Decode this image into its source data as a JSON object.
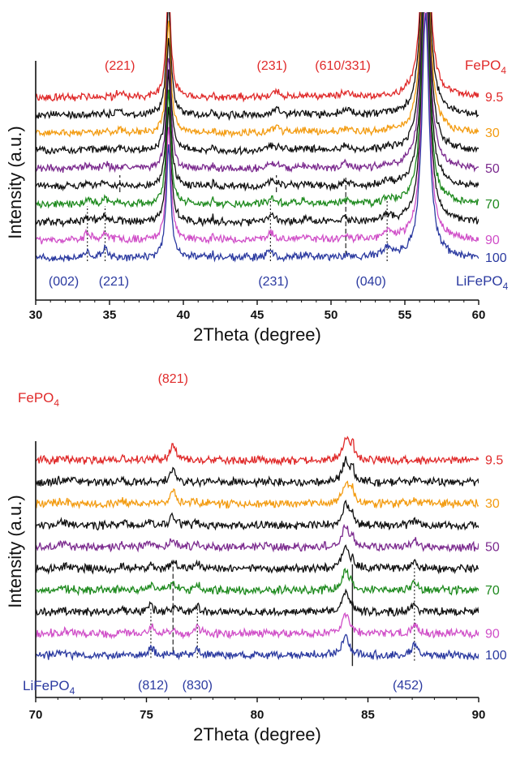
{
  "figure": {
    "background": "#ffffff"
  },
  "colors": {
    "red": "#e02a2a",
    "black": "#111111",
    "orange": "#f39c12",
    "purple": "#7b2a8e",
    "green": "#1e8a1e",
    "magenta": "#d04fc8",
    "blue": "#2b3aa0"
  },
  "chart_data": [
    {
      "type": "line",
      "panel": "top",
      "xlabel": "2Theta (degree)",
      "ylabel": "Intensity (a.u.)",
      "xlim": [
        30,
        60
      ],
      "xticks": [
        30,
        35,
        40,
        45,
        50,
        55,
        60
      ],
      "series": [
        {
          "name": "9.5",
          "color": "#e02a2a",
          "label_color": "#e02a2a",
          "offset": 9
        },
        {
          "name": "",
          "color": "#111111",
          "label_color": "",
          "offset": 8
        },
        {
          "name": "30",
          "color": "#f39c12",
          "label_color": "#f39c12",
          "offset": 7
        },
        {
          "name": "",
          "color": "#111111",
          "label_color": "",
          "offset": 6
        },
        {
          "name": "50",
          "color": "#7b2a8e",
          "label_color": "#7b2a8e",
          "offset": 5
        },
        {
          "name": "",
          "color": "#111111",
          "label_color": "",
          "offset": 4
        },
        {
          "name": "70",
          "color": "#1e8a1e",
          "label_color": "#1e8a1e",
          "offset": 3
        },
        {
          "name": "",
          "color": "#111111",
          "label_color": "",
          "offset": 2
        },
        {
          "name": "90",
          "color": "#d04fc8",
          "label_color": "#d04fc8",
          "offset": 1
        },
        {
          "name": "100",
          "color": "#2b3aa0",
          "label_color": "#2b3aa0",
          "offset": 0
        }
      ],
      "peaks": [
        {
          "x": 33.5,
          "fp": 0.0,
          "lf": 0.8,
          "w": 0.25
        },
        {
          "x": 34.7,
          "fp": 0.0,
          "lf": 1.0,
          "w": 0.25
        },
        {
          "x": 35.7,
          "fp": 0.6,
          "lf": 0.0,
          "w": 0.25
        },
        {
          "x": 39.0,
          "fp": 14.0,
          "lf": 14.0,
          "w": 0.18
        },
        {
          "x": 42.0,
          "fp": 0.6,
          "lf": 0.6,
          "w": 0.06
        },
        {
          "x": 45.9,
          "fp": 0.0,
          "lf": 1.0,
          "w": 0.25
        },
        {
          "x": 46.3,
          "fp": 0.7,
          "lf": 0.0,
          "w": 0.25
        },
        {
          "x": 48.1,
          "fp": 0.3,
          "lf": 0.3,
          "w": 0.5
        },
        {
          "x": 51.0,
          "fp": 0.7,
          "lf": 0.3,
          "w": 0.3
        },
        {
          "x": 53.8,
          "fp": 0.0,
          "lf": 1.0,
          "w": 0.3
        },
        {
          "x": 56.4,
          "fp": 30.0,
          "lf": 30.0,
          "w": 0.3
        }
      ],
      "dashed_lines": [
        {
          "x": 35.7,
          "style": "dashed",
          "from": 8.1,
          "to": 10.2
        },
        {
          "x": 46.3,
          "style": "dashed",
          "from": 8.1,
          "to": 10.2
        },
        {
          "x": 51.0,
          "style": "dashed",
          "from": 0.3,
          "to": 10.2
        },
        {
          "x": 33.5,
          "style": "dotted",
          "from": -0.4,
          "to": 6.4
        },
        {
          "x": 34.7,
          "style": "dotted",
          "from": -0.4,
          "to": 6.4
        },
        {
          "x": 45.9,
          "style": "dotted",
          "from": -0.4,
          "to": 7.0
        },
        {
          "x": 53.8,
          "style": "dotted",
          "from": -0.4,
          "to": 7.0
        }
      ],
      "annotations": [
        {
          "text": "(221)",
          "x": 35.7,
          "color": "#e02a2a",
          "pos": "top"
        },
        {
          "text": "(231)",
          "x": 46.0,
          "color": "#e02a2a",
          "pos": "top"
        },
        {
          "text": "(610/331)",
          "x": 50.8,
          "color": "#e02a2a",
          "pos": "top"
        },
        {
          "text": "(002)",
          "x": 31.9,
          "color": "#2b3aa0",
          "pos": "bottom"
        },
        {
          "text": "(221)",
          "x": 35.3,
          "color": "#2b3aa0",
          "pos": "bottom"
        },
        {
          "text": "(231)",
          "x": 46.1,
          "color": "#2b3aa0",
          "pos": "bottom"
        },
        {
          "text": "(040)",
          "x": 52.7,
          "color": "#2b3aa0",
          "pos": "bottom"
        }
      ],
      "phase_top": {
        "text": "FePO",
        "sub": "4",
        "color": "#e02a2a"
      },
      "phase_bottom": {
        "text": "LiFePO",
        "sub": "4",
        "color": "#2b3aa0"
      }
    },
    {
      "type": "line",
      "panel": "bottom",
      "xlabel": "2Theta (degree)",
      "ylabel": "Intensity (a.u.)",
      "xlim": [
        70,
        90
      ],
      "xticks": [
        70,
        75,
        80,
        85,
        90
      ],
      "series": [
        {
          "name": "9.5",
          "color": "#e02a2a",
          "label_color": "#e02a2a",
          "offset": 9
        },
        {
          "name": "",
          "color": "#111111",
          "label_color": "",
          "offset": 8
        },
        {
          "name": "30",
          "color": "#f39c12",
          "label_color": "#f39c12",
          "offset": 7
        },
        {
          "name": "",
          "color": "#111111",
          "label_color": "",
          "offset": 6
        },
        {
          "name": "50",
          "color": "#7b2a8e",
          "label_color": "#7b2a8e",
          "offset": 5
        },
        {
          "name": "",
          "color": "#111111",
          "label_color": "",
          "offset": 4
        },
        {
          "name": "70",
          "color": "#1e8a1e",
          "label_color": "#1e8a1e",
          "offset": 3
        },
        {
          "name": "",
          "color": "#111111",
          "label_color": "",
          "offset": 2
        },
        {
          "name": "90",
          "color": "#d04fc8",
          "label_color": "#d04fc8",
          "offset": 1
        },
        {
          "name": "100",
          "color": "#2b3aa0",
          "label_color": "#2b3aa0",
          "offset": 0
        }
      ],
      "peaks": [
        {
          "x": 71.2,
          "fp": 0.4,
          "lf": 0.2,
          "w": 0.2
        },
        {
          "x": 73.9,
          "fp": 0.6,
          "lf": 0.3,
          "w": 0.06
        },
        {
          "x": 75.2,
          "fp": 0.0,
          "lf": 1.0,
          "w": 0.12
        },
        {
          "x": 76.2,
          "fp": 1.6,
          "lf": 0.2,
          "w": 0.15
        },
        {
          "x": 77.3,
          "fp": 0.0,
          "lf": 1.0,
          "w": 0.12
        },
        {
          "x": 84.0,
          "fp": 2.5,
          "lf": 2.2,
          "w": 0.18
        },
        {
          "x": 84.3,
          "fp": 1.8,
          "lf": 0.0,
          "w": 0.08
        },
        {
          "x": 87.1,
          "fp": 0.2,
          "lf": 1.2,
          "w": 0.15
        }
      ],
      "dashed_lines": [
        {
          "x": 76.2,
          "style": "dashed",
          "from": 0.4,
          "to": 10.4
        },
        {
          "x": 84.3,
          "style": "solid",
          "from": -1.2,
          "to": 10.2
        },
        {
          "x": 75.2,
          "style": "dotted",
          "from": -0.3,
          "to": 5.3
        },
        {
          "x": 77.3,
          "style": "dotted",
          "from": -0.3,
          "to": 5.3
        },
        {
          "x": 87.1,
          "style": "dotted",
          "from": -0.6,
          "to": 9.8
        }
      ],
      "annotations": [
        {
          "text": "(821)",
          "x": 76.2,
          "color": "#e02a2a",
          "pos": "top"
        },
        {
          "text": "(812)",
          "x": 75.3,
          "color": "#2b3aa0",
          "pos": "bottom"
        },
        {
          "text": "(830)",
          "x": 77.3,
          "color": "#2b3aa0",
          "pos": "bottom"
        },
        {
          "text": "(452)",
          "x": 86.8,
          "color": "#2b3aa0",
          "pos": "bottom"
        }
      ],
      "phase_top": {
        "text": "FePO",
        "sub": "4",
        "color": "#e02a2a"
      },
      "phase_bottom": {
        "text": "LiFePO",
        "sub": "4",
        "color": "#2b3aa0"
      }
    }
  ]
}
